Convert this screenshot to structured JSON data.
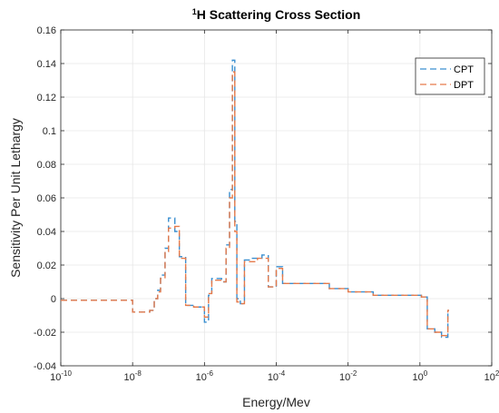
{
  "chart_data": {
    "type": "line",
    "title_sup": "1",
    "title_rest": "H Scattering Cross Section",
    "xlabel": "Energy/Mev",
    "ylabel": "Sensitivity Per Unit Lethargy",
    "xscale": "log",
    "xlim_exp": [
      -10,
      2
    ],
    "ylim": [
      -0.04,
      0.16
    ],
    "x_ticks": [
      {
        "base": "10",
        "exp": "-10"
      },
      {
        "base": "10",
        "exp": "-8"
      },
      {
        "base": "10",
        "exp": "-6"
      },
      {
        "base": "10",
        "exp": "-4"
      },
      {
        "base": "10",
        "exp": "-2"
      },
      {
        "base": "10",
        "exp": "0"
      },
      {
        "base": "10",
        "exp": "2"
      }
    ],
    "y_ticks": [
      "-0.04",
      "-0.02",
      "0",
      "0.02",
      "0.04",
      "0.06",
      "0.08",
      "0.1",
      "0.12",
      "0.14",
      "0.16"
    ],
    "grid": true,
    "legend_position": "top-right",
    "series": [
      {
        "name": "CPT",
        "color": "#3a8fd0",
        "dash": "dashed",
        "x": [
          "1e-10",
          "1e-8",
          "1.8e-8",
          "3e-8",
          "4e-8",
          "5e-8",
          "6e-8",
          "8e-8",
          "1e-7",
          "1.5e-7",
          "2e-7",
          "3e-7",
          "5e-7",
          "8e-7",
          "1e-6",
          "1.3e-6",
          "1.6e-6",
          "2e-6",
          "3e-6",
          "4e-6",
          "5e-6",
          "6e-6",
          "7e-6",
          "8e-6",
          "1e-5",
          "1.3e-5",
          "2e-5",
          "3e-5",
          "4e-5",
          "6e-5",
          "1e-4",
          "1.5e-4",
          "5e-4",
          "3e-3",
          "1e-2",
          "5e-2",
          "1.1",
          "1.6",
          "2.6",
          "4",
          "6"
        ],
        "y": [
          -0.001,
          -0.008,
          -0.008,
          -0.007,
          0,
          0.005,
          0.014,
          0.03,
          0.048,
          0.04,
          0.025,
          -0.004,
          -0.005,
          -0.005,
          -0.014,
          0.002,
          0.012,
          0.012,
          0.01,
          0.032,
          0.065,
          0.142,
          0.046,
          0,
          -0.003,
          0.023,
          0.024,
          0.024,
          0.026,
          0.007,
          0.019,
          0.009,
          0.009,
          0.006,
          0.004,
          0.002,
          0.001,
          -0.018,
          -0.02,
          -0.023,
          -0.007
        ],
        "x_end": "6.5"
      },
      {
        "name": "DPT",
        "color": "#e67a4a",
        "dash": "dashed",
        "x": [
          "1e-10",
          "1e-8",
          "1.8e-8",
          "3e-8",
          "4e-8",
          "5e-8",
          "6e-8",
          "8e-8",
          "1e-7",
          "1.5e-7",
          "2e-7",
          "3e-7",
          "5e-7",
          "8e-7",
          "1e-6",
          "1.3e-6",
          "1.6e-6",
          "2e-6",
          "3e-6",
          "4e-6",
          "5e-6",
          "6e-6",
          "7e-6",
          "8e-6",
          "1e-5",
          "1.3e-5",
          "2e-5",
          "3e-5",
          "4e-5",
          "6e-5",
          "1e-4",
          "1.5e-4",
          "5e-4",
          "3e-3",
          "1e-2",
          "5e-2",
          "1.1",
          "1.6",
          "2.6",
          "4",
          "6"
        ],
        "y": [
          -0.001,
          -0.008,
          -0.008,
          -0.007,
          0,
          0.004,
          0.012,
          0.028,
          0.042,
          0.043,
          0.024,
          -0.004,
          -0.005,
          -0.005,
          -0.011,
          0.003,
          0.011,
          0.011,
          0.01,
          0.03,
          0.06,
          0.135,
          0.04,
          -0.002,
          -0.003,
          0.022,
          0.022,
          0.024,
          0.024,
          0.007,
          0.018,
          0.009,
          0.009,
          0.006,
          0.004,
          0.002,
          0.001,
          -0.018,
          -0.02,
          -0.022,
          -0.007
        ],
        "x_end": "6.5"
      }
    ]
  }
}
